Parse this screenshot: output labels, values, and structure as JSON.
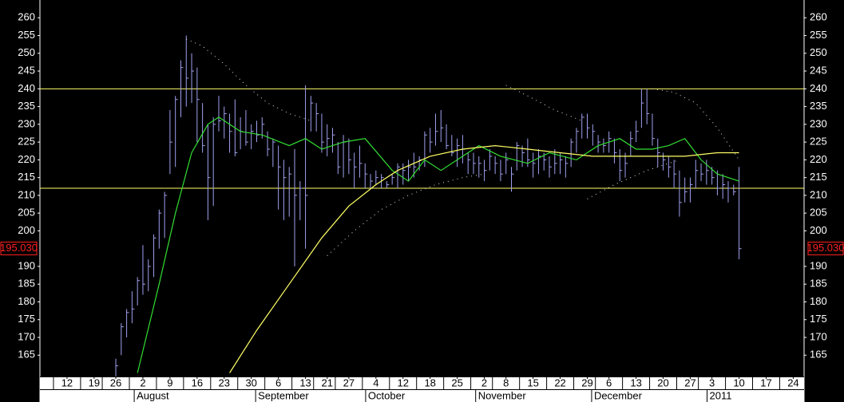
{
  "chart_data": {
    "type": "ohlc",
    "color": "#a0a0f0",
    "xlim": [
      0,
      141
    ],
    "ylim": [
      159,
      265
    ],
    "yticks": [
      165,
      170,
      175,
      180,
      185,
      190,
      200,
      205,
      210,
      215,
      220,
      225,
      230,
      235,
      240,
      245,
      250,
      255,
      260
    ],
    "xticks": [
      {
        "value": 5,
        "label": "12"
      },
      {
        "value": 10,
        "label": "19"
      },
      {
        "value": 14,
        "label": "26"
      },
      {
        "value": 19,
        "label": "2"
      },
      {
        "value": 24,
        "label": "9"
      },
      {
        "value": 29,
        "label": "16"
      },
      {
        "value": 34,
        "label": "23"
      },
      {
        "value": 39,
        "label": "30"
      },
      {
        "value": 44,
        "label": "6"
      },
      {
        "value": 49,
        "label": "13"
      },
      {
        "value": 53,
        "label": "21"
      },
      {
        "value": 57,
        "label": "27"
      },
      {
        "value": 62,
        "label": "4"
      },
      {
        "value": 67,
        "label": "12"
      },
      {
        "value": 72,
        "label": "18"
      },
      {
        "value": 77,
        "label": "25"
      },
      {
        "value": 82,
        "label": "2"
      },
      {
        "value": 86,
        "label": "8"
      },
      {
        "value": 91,
        "label": "15"
      },
      {
        "value": 96,
        "label": "22"
      },
      {
        "value": 101,
        "label": "29"
      },
      {
        "value": 105,
        "label": "6"
      },
      {
        "value": 110,
        "label": "13"
      },
      {
        "value": 115,
        "label": "20"
      },
      {
        "value": 120,
        "label": "27"
      },
      {
        "value": 124,
        "label": "3"
      },
      {
        "value": 129,
        "label": "10"
      },
      {
        "value": 134,
        "label": "17"
      },
      {
        "value": 139,
        "label": "24"
      }
    ],
    "months": [
      {
        "value": 17.4,
        "label": "August"
      },
      {
        "value": 39.8,
        "label": "September"
      },
      {
        "value": 60.1,
        "label": "October"
      },
      {
        "value": 80.4,
        "label": "November"
      },
      {
        "value": 101.8,
        "label": "December"
      },
      {
        "value": 123.1,
        "label": "2011"
      }
    ],
    "last_price": {
      "value": 195.03,
      "label": "195.030",
      "color": "#ff2020"
    },
    "hlines": {
      "values": [
        240,
        212
      ],
      "color": "#ffff66"
    },
    "x": [
      14,
      15,
      16,
      17,
      18,
      19,
      20,
      21,
      22,
      23,
      24,
      25,
      26,
      27,
      28,
      29,
      30,
      31,
      32,
      33,
      34,
      35,
      36,
      37,
      38,
      39,
      40,
      41,
      42,
      43,
      44,
      45,
      46,
      47,
      48,
      49,
      50,
      51,
      52,
      53,
      54,
      55,
      56,
      57,
      58,
      59,
      60,
      61,
      62,
      63,
      64,
      65,
      66,
      67,
      68,
      69,
      70,
      71,
      72,
      73,
      74,
      75,
      76,
      77,
      78,
      79,
      80,
      81,
      82,
      83,
      84,
      85,
      86,
      87,
      88,
      89,
      90,
      91,
      92,
      93,
      94,
      95,
      96,
      97,
      98,
      99,
      100,
      101,
      102,
      103,
      104,
      105,
      106,
      107,
      108,
      109,
      110,
      111,
      112,
      113,
      114,
      115,
      116,
      117,
      118,
      119,
      120,
      121,
      122,
      123,
      124,
      125,
      126,
      127,
      128,
      129
    ],
    "high": [
      164,
      174,
      178,
      183,
      187,
      196,
      192,
      199,
      206,
      211,
      234,
      238,
      248,
      255,
      250,
      246,
      236,
      230,
      232,
      238,
      235,
      233,
      237,
      232,
      234,
      230,
      231,
      232,
      228,
      226,
      224,
      220,
      218,
      223,
      214,
      241,
      238,
      236,
      233,
      230,
      229,
      225,
      227,
      226,
      222,
      224,
      219,
      216,
      217,
      216,
      214,
      216,
      219,
      219,
      220,
      222,
      221,
      228,
      229,
      233,
      234,
      230,
      227,
      226,
      227,
      222,
      222,
      221,
      220,
      223,
      221,
      220,
      222,
      218,
      225,
      224,
      226,
      222,
      223,
      222,
      221,
      223,
      222,
      221,
      226,
      229,
      233,
      233,
      230,
      227,
      226,
      228,
      226,
      223,
      222,
      228,
      231,
      240,
      240,
      233,
      226,
      222,
      221,
      220,
      217,
      215,
      215,
      220,
      219,
      220,
      218,
      217,
      216,
      214,
      213,
      218
    ],
    "low": [
      159,
      165,
      170,
      174,
      179,
      182,
      183,
      187,
      195,
      198,
      216,
      218,
      232,
      235,
      236,
      225,
      222,
      203,
      207,
      228,
      226,
      222,
      221,
      223,
      224,
      223,
      225,
      226,
      221,
      218,
      206,
      203,
      204,
      190,
      203,
      195,
      228,
      228,
      222,
      221,
      222,
      216,
      215,
      216,
      212,
      215,
      212,
      212,
      213,
      212,
      212,
      213,
      212,
      213,
      214,
      215,
      217,
      218,
      222,
      224,
      225,
      223,
      221,
      218,
      219,
      216,
      216,
      215,
      214,
      217,
      216,
      214,
      216,
      211,
      217,
      218,
      218,
      215,
      216,
      217,
      215,
      216,
      216,
      215,
      218,
      222,
      226,
      226,
      224,
      222,
      222,
      222,
      219,
      214,
      215,
      221,
      225,
      229,
      230,
      224,
      218,
      217,
      215,
      212,
      204,
      208,
      208,
      212,
      214,
      213,
      213,
      210,
      209,
      208,
      210,
      192
    ],
    "close": [
      162,
      173,
      177,
      178,
      186,
      185,
      190,
      198,
      205,
      210,
      225,
      237,
      246,
      243,
      245,
      237,
      224,
      215,
      230,
      231,
      233,
      228,
      222,
      228,
      225,
      228,
      227,
      230,
      223,
      225,
      218,
      215,
      216,
      210,
      212,
      210,
      236,
      233,
      225,
      226,
      227,
      218,
      225,
      220,
      218,
      219,
      216,
      214,
      215,
      215,
      213,
      215,
      218,
      217,
      218,
      218,
      220,
      227,
      225,
      228,
      229,
      224,
      222,
      224,
      223,
      220,
      219,
      219,
      217,
      221,
      219,
      216,
      220,
      216,
      224,
      222,
      220,
      219,
      221,
      220,
      218,
      219,
      220,
      219,
      225,
      228,
      232,
      229,
      228,
      225,
      224,
      226,
      222,
      217,
      219,
      226,
      228,
      236,
      233,
      226,
      222,
      220,
      218,
      216,
      208,
      211,
      213,
      217,
      216,
      217,
      215,
      212,
      213,
      212,
      211,
      195
    ],
    "lines": [
      {
        "color": "#33dd33",
        "style": "solid",
        "x": [
          18,
          22,
          25,
          28,
          31,
          33,
          37,
          41,
          46,
          49,
          52,
          56,
          60,
          65,
          68,
          71,
          74,
          78,
          81,
          85,
          90,
          94,
          99,
          103,
          107,
          110,
          113,
          116,
          119,
          122,
          125,
          129
        ],
        "values": [
          160,
          185,
          205,
          222,
          230,
          232,
          228,
          227,
          224,
          226,
          223,
          225,
          226,
          217,
          214,
          220,
          217,
          221,
          224,
          221,
          219,
          222,
          220,
          224,
          226,
          223,
          223,
          224,
          226,
          220,
          216,
          214
        ]
      },
      {
        "color": "#ffff66",
        "style": "solid",
        "x": [
          35,
          40,
          46,
          52,
          57,
          62,
          66,
          72,
          78,
          84,
          90,
          96,
          102,
          108,
          113,
          119,
          125,
          129
        ],
        "values": [
          160,
          172,
          185,
          198,
          207,
          213,
          217,
          221,
          223,
          224,
          223,
          222,
          221,
          221,
          221,
          221,
          222,
          222
        ]
      },
      {
        "color": "#dddddd",
        "style": "dotted",
        "x": [
          27,
          30,
          34,
          38,
          42,
          46,
          50,
          51,
          53,
          58,
          63,
          68,
          73,
          78,
          82,
          83,
          86,
          90,
          95,
          100,
          101,
          101,
          106,
          112,
          118,
          119,
          113,
          117,
          121,
          125,
          129
        ],
        "values": [
          254,
          252,
          247,
          241,
          236,
          233,
          231,
          null,
          193,
          200,
          206,
          210,
          213,
          215,
          216,
          null,
          241,
          238,
          234,
          231,
          null,
          209,
          213,
          217,
          220,
          null,
          240,
          239,
          236,
          229,
          220
        ]
      }
    ]
  }
}
